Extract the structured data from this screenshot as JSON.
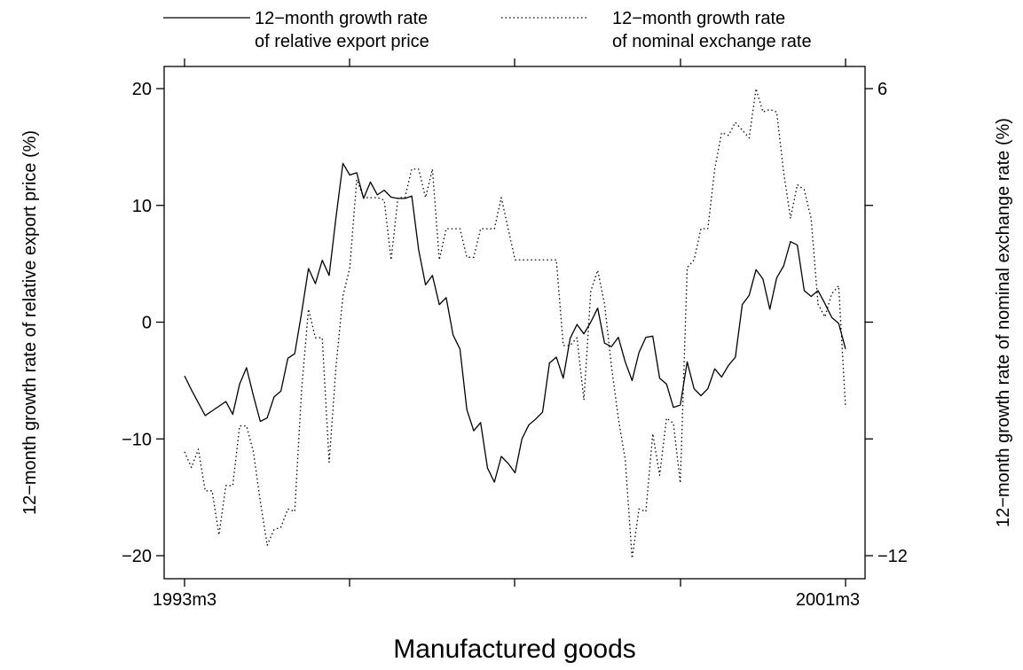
{
  "chart_data": {
    "type": "line",
    "title": "Manufactured goods",
    "ylabel_left": "12−month growth rate of relative export price (%)",
    "ylabel_right": "12−month growth rate of nominal exchange rate (%)",
    "x_tick_labels": [
      "1993m3",
      "",
      "",
      "",
      "2001m3"
    ],
    "x_range": [
      0,
      96
    ],
    "left_ticks": [
      "20",
      "10",
      "0",
      "−10",
      "−20"
    ],
    "left_tick_values": [
      20,
      10,
      0,
      -10,
      -20
    ],
    "right_ticks": [
      "6",
      "−12"
    ],
    "right_tick_values": [
      6,
      -12
    ],
    "ylim_left": [
      -21,
      22
    ],
    "ylim_right": [
      -12.5,
      6.5
    ],
    "grid": false,
    "legend_position": "top",
    "series": [
      {
        "name": "12−month growth rate of relative export price",
        "line_style": "solid",
        "axis": "left",
        "points": [
          [
            0,
            -4.6
          ],
          [
            1,
            -5.8
          ],
          [
            2,
            -6.9
          ],
          [
            3,
            -8.0
          ],
          [
            4,
            -7.6
          ],
          [
            5,
            -7.2
          ],
          [
            6,
            -6.8
          ],
          [
            7,
            -7.9
          ],
          [
            8,
            -5.3
          ],
          [
            9,
            -3.9
          ],
          [
            10,
            -6.3
          ],
          [
            11,
            -8.5
          ],
          [
            12,
            -8.2
          ],
          [
            13,
            -6.4
          ],
          [
            14,
            -5.9
          ],
          [
            15,
            -3.1
          ],
          [
            16,
            -2.7
          ],
          [
            17,
            0.8
          ],
          [
            18,
            4.6
          ],
          [
            19,
            3.3
          ],
          [
            20,
            5.3
          ],
          [
            21,
            4.0
          ],
          [
            22,
            9.0
          ],
          [
            23,
            13.6
          ],
          [
            24,
            12.6
          ],
          [
            25,
            12.8
          ],
          [
            26,
            10.6
          ],
          [
            27,
            12.0
          ],
          [
            28,
            10.9
          ],
          [
            29,
            11.3
          ],
          [
            30,
            10.7
          ],
          [
            31,
            10.6
          ],
          [
            32,
            10.6
          ],
          [
            33,
            10.8
          ],
          [
            34,
            6.2
          ],
          [
            35,
            3.2
          ],
          [
            36,
            4.0
          ],
          [
            37,
            1.5
          ],
          [
            38,
            2.1
          ],
          [
            39,
            -1.1
          ],
          [
            40,
            -2.3
          ],
          [
            41,
            -7.5
          ],
          [
            42,
            -9.3
          ],
          [
            43,
            -8.6
          ],
          [
            44,
            -12.5
          ],
          [
            45,
            -13.7
          ],
          [
            46,
            -11.5
          ],
          [
            47,
            -12.1
          ],
          [
            48,
            -12.9
          ],
          [
            49,
            -10.0
          ],
          [
            50,
            -8.8
          ],
          [
            51,
            -8.3
          ],
          [
            52,
            -7.7
          ],
          [
            53,
            -3.5
          ],
          [
            54,
            -3.0
          ],
          [
            55,
            -4.8
          ],
          [
            56,
            -1.4
          ],
          [
            57,
            -0.2
          ],
          [
            58,
            -1.0
          ],
          [
            59,
            0.0
          ],
          [
            60,
            1.2
          ],
          [
            61,
            -1.8
          ],
          [
            62,
            -2.1
          ],
          [
            63,
            -1.3
          ],
          [
            64,
            -3.4
          ],
          [
            65,
            -5.0
          ],
          [
            66,
            -2.6
          ],
          [
            67,
            -1.3
          ],
          [
            68,
            -1.2
          ],
          [
            69,
            -4.8
          ],
          [
            70,
            -5.3
          ],
          [
            71,
            -7.3
          ],
          [
            72,
            -7.1
          ],
          [
            73,
            -3.4
          ],
          [
            74,
            -5.7
          ],
          [
            75,
            -6.3
          ],
          [
            76,
            -5.7
          ],
          [
            77,
            -4.0
          ],
          [
            78,
            -4.7
          ],
          [
            79,
            -3.7
          ],
          [
            80,
            -3.0
          ],
          [
            81,
            1.5
          ],
          [
            82,
            2.3
          ],
          [
            83,
            4.5
          ],
          [
            84,
            3.7
          ],
          [
            85,
            1.1
          ],
          [
            86,
            3.8
          ],
          [
            87,
            4.8
          ],
          [
            88,
            6.9
          ],
          [
            89,
            6.6
          ],
          [
            90,
            2.7
          ],
          [
            91,
            2.2
          ],
          [
            92,
            2.7
          ],
          [
            93,
            1.6
          ],
          [
            94,
            0.4
          ],
          [
            95,
            -0.1
          ],
          [
            96,
            -2.3
          ]
        ]
      },
      {
        "name": "12−month growth rate of nominal exchange rate",
        "line_style": "dotted",
        "axis": "right",
        "points": [
          [
            0,
            -8.0
          ],
          [
            1,
            -8.6
          ],
          [
            2,
            -7.9
          ],
          [
            3,
            -9.5
          ],
          [
            4,
            -9.5
          ],
          [
            5,
            -11.2
          ],
          [
            6,
            -9.3
          ],
          [
            7,
            -9.3
          ],
          [
            8,
            -7.0
          ],
          [
            9,
            -7.0
          ],
          [
            10,
            -8.0
          ],
          [
            11,
            -9.9
          ],
          [
            12,
            -11.6
          ],
          [
            13,
            -11.0
          ],
          [
            14,
            -10.9
          ],
          [
            15,
            -10.2
          ],
          [
            16,
            -10.3
          ],
          [
            17,
            -5.6
          ],
          [
            18,
            -2.5
          ],
          [
            19,
            -3.6
          ],
          [
            20,
            -3.6
          ],
          [
            21,
            -8.4
          ],
          [
            22,
            -4.7
          ],
          [
            23,
            -2.0
          ],
          [
            24,
            -0.9
          ],
          [
            25,
            2.5
          ],
          [
            26,
            1.8
          ],
          [
            27,
            1.8
          ],
          [
            28,
            1.8
          ],
          [
            29,
            1.7
          ],
          [
            30,
            -0.6
          ],
          [
            31,
            1.8
          ],
          [
            32,
            1.8
          ],
          [
            33,
            2.9
          ],
          [
            34,
            2.9
          ],
          [
            35,
            1.8
          ],
          [
            36,
            2.9
          ],
          [
            37,
            -0.6
          ],
          [
            38,
            0.6
          ],
          [
            39,
            0.6
          ],
          [
            40,
            0.6
          ],
          [
            41,
            -0.5
          ],
          [
            42,
            -0.5
          ],
          [
            43,
            0.6
          ],
          [
            44,
            0.6
          ],
          [
            45,
            0.6
          ],
          [
            46,
            1.8
          ],
          [
            47,
            0.6
          ],
          [
            48,
            -0.6
          ],
          [
            49,
            -0.6
          ],
          [
            50,
            -0.6
          ],
          [
            51,
            -0.6
          ],
          [
            52,
            -0.6
          ],
          [
            53,
            -0.6
          ],
          [
            54,
            -0.6
          ],
          [
            55,
            -3.9
          ],
          [
            56,
            -3.9
          ],
          [
            57,
            -3.6
          ],
          [
            58,
            -6.0
          ],
          [
            59,
            -1.8
          ],
          [
            60,
            -1.0
          ],
          [
            61,
            -2.3
          ],
          [
            62,
            -4.7
          ],
          [
            63,
            -6.7
          ],
          [
            64,
            -8.3
          ],
          [
            65,
            -12.1
          ],
          [
            66,
            -10.2
          ],
          [
            67,
            -10.3
          ],
          [
            68,
            -7.3
          ],
          [
            69,
            -8.9
          ],
          [
            70,
            -6.7
          ],
          [
            71,
            -6.9
          ],
          [
            72,
            -9.2
          ],
          [
            73,
            -0.9
          ],
          [
            74,
            -0.6
          ],
          [
            75,
            0.6
          ],
          [
            76,
            0.6
          ],
          [
            77,
            2.9
          ],
          [
            78,
            4.3
          ],
          [
            79,
            4.2
          ],
          [
            80,
            4.7
          ],
          [
            81,
            4.4
          ],
          [
            82,
            4.1
          ],
          [
            83,
            6.0
          ],
          [
            84,
            5.1
          ],
          [
            85,
            5.2
          ],
          [
            86,
            5.1
          ],
          [
            87,
            2.8
          ],
          [
            88,
            1.0
          ],
          [
            89,
            2.3
          ],
          [
            90,
            2.1
          ],
          [
            91,
            1.0
          ],
          [
            92,
            -2.3
          ],
          [
            93,
            -2.8
          ],
          [
            94,
            -1.9
          ],
          [
            95,
            -1.6
          ],
          [
            96,
            -6.3
          ]
        ]
      }
    ]
  }
}
